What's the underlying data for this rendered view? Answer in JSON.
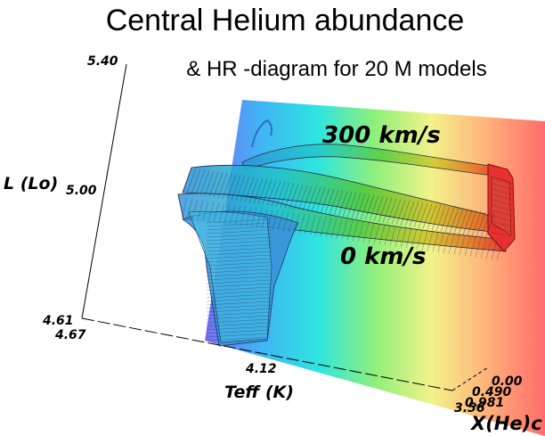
{
  "chart_data": {
    "type": "surface",
    "title": "Central Helium abundance",
    "subtitle": "& HR -diagram for 20 M models",
    "ylabel": "L (Lo)",
    "xlabel": "Teff (K)",
    "zlabel": "X(He)c",
    "y_ticks": [
      "5.40",
      "5.00",
      "4.61"
    ],
    "x_ticks": [
      "4.67",
      "4.12",
      "3.56"
    ],
    "z_ticks": [
      "0.00",
      "0.490",
      "0.981"
    ],
    "annotations": [
      "300 km/s",
      "0 km/s"
    ],
    "colormap": [
      "#7a6ef0",
      "#3fb5f5",
      "#2ee5e0",
      "#8ff07a",
      "#f2f28a",
      "#ffb07a",
      "#ff6b6b"
    ]
  }
}
